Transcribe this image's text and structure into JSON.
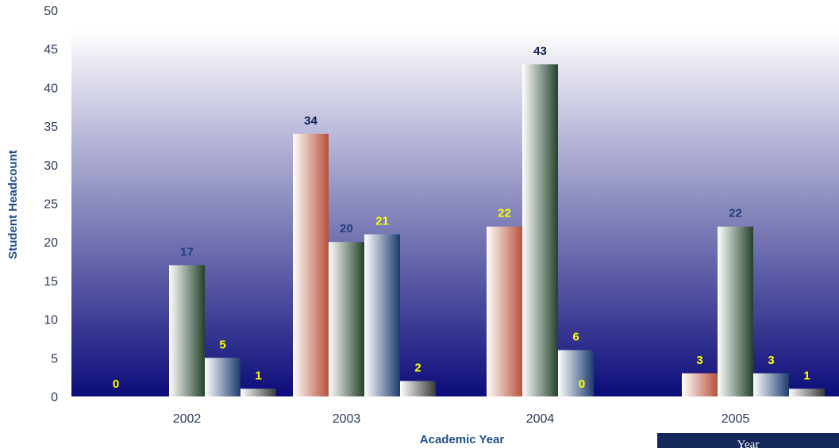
{
  "chart_data": {
    "type": "bar",
    "categories": [
      "2002",
      "2003",
      "2004",
      "2005"
    ],
    "series": [
      {
        "values": [
          0,
          34,
          22,
          3
        ],
        "fill_start": "#ffffff",
        "fill_end": "#b8513a",
        "label_color": "#ffff00"
      },
      {
        "values": [
          17,
          20,
          43,
          22
        ],
        "fill_start": "#ffffff",
        "fill_end": "#23422b",
        "label_color": "#1f3f7a"
      },
      {
        "values": [
          5,
          21,
          6,
          3
        ],
        "fill_start": "#ffffff",
        "fill_end": "#1e3c6e",
        "label_color": "#ffff00"
      },
      {
        "values": [
          1,
          2,
          0,
          1
        ],
        "fill_start": "#ffffff",
        "fill_end": "#3a3a3a",
        "label_color": "#ffff00"
      }
    ],
    "label_color_overrides": [
      {
        "series": 0,
        "index": 1,
        "color": "#0a1a5a"
      },
      {
        "series": 1,
        "index": 2,
        "color": "#0a1a5a"
      }
    ],
    "xlabel": "Academic Year",
    "ylabel": "Student Headcount",
    "ylim": [
      0,
      50
    ],
    "yticks": [
      0,
      5,
      10,
      15,
      20,
      25,
      30,
      35,
      40,
      45,
      50
    ],
    "background_gradient": {
      "top": "#ffffff",
      "bottom": "#0c0c7a"
    },
    "grid": false
  },
  "legend": {
    "label": "Year"
  }
}
